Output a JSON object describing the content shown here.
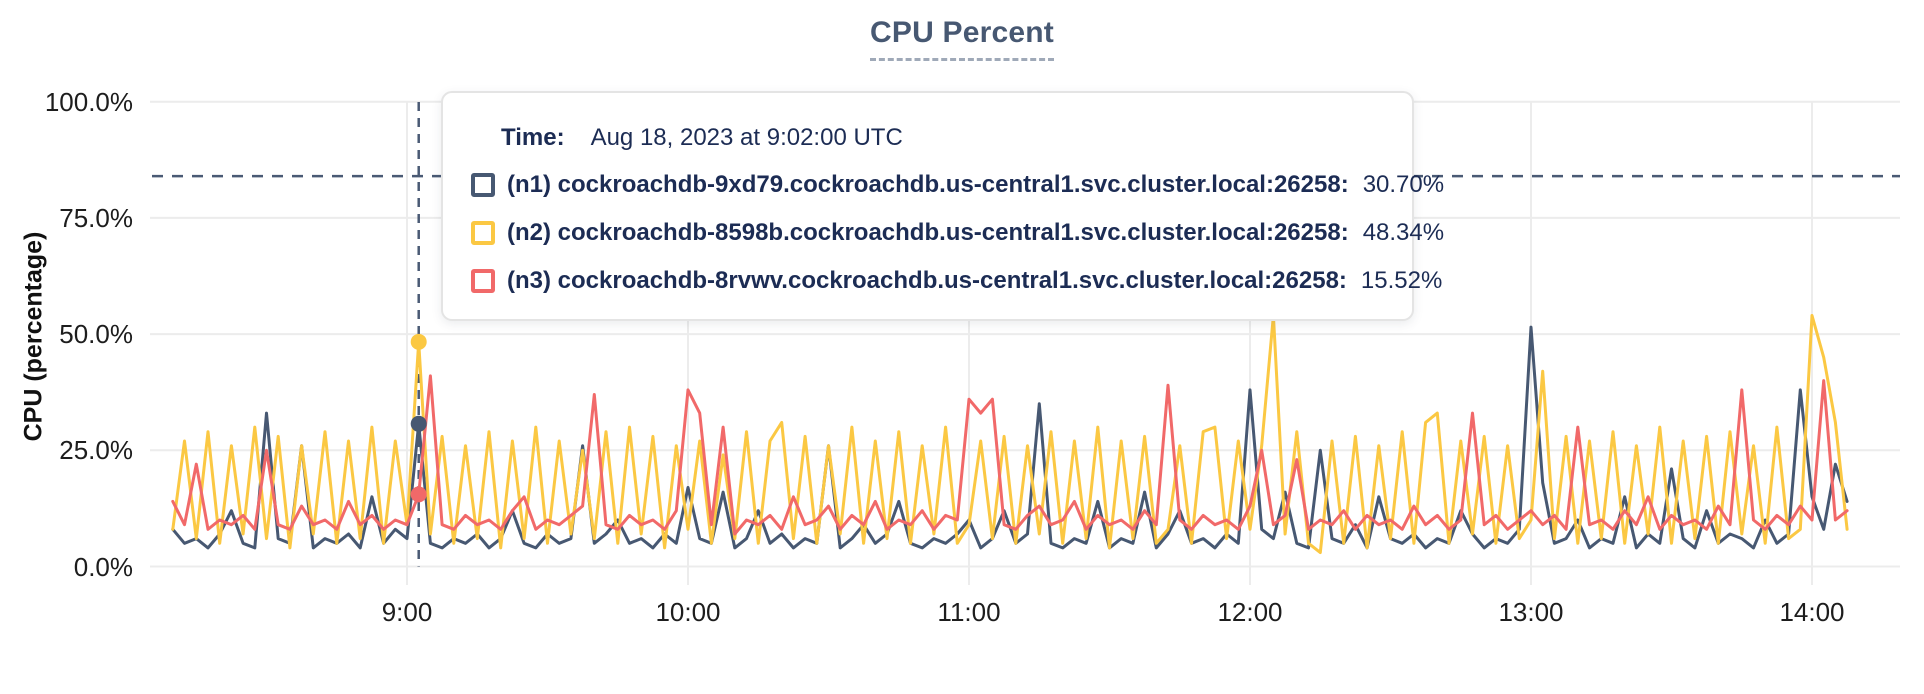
{
  "title": "CPU Percent",
  "y_axis": {
    "label": "CPU (percentage)",
    "ticks": [
      {
        "label": "0.0%",
        "value": 0
      },
      {
        "label": "25.0%",
        "value": 25
      },
      {
        "label": "50.0%",
        "value": 50
      },
      {
        "label": "75.0%",
        "value": 75
      },
      {
        "label": "100.0%",
        "value": 100
      }
    ]
  },
  "x_axis": {
    "ticks": [
      {
        "label": "9:00",
        "minutes": 0
      },
      {
        "label": "10:00",
        "minutes": 60
      },
      {
        "label": "11:00",
        "minutes": 120
      },
      {
        "label": "12:00",
        "minutes": 180
      },
      {
        "label": "13:00",
        "minutes": 240
      },
      {
        "label": "14:00",
        "minutes": 300
      }
    ]
  },
  "tooltip": {
    "time_label": "Time:",
    "time_value": "Aug 18, 2023 at 9:02:00 UTC",
    "rows": [
      {
        "label": "(n1) cockroachdb-9xd79.cockroachdb.us-central1.svc.cluster.local:26258:",
        "value": "30.70%",
        "color": "#475872"
      },
      {
        "label": "(n2) cockroachdb-8598b.cockroachdb.us-central1.svc.cluster.local:26258:",
        "value": "48.34%",
        "color": "#FBC843"
      },
      {
        "label": "(n3) cockroachdb-8rvwv.cockroachdb.us-central1.svc.cluster.local:26258:",
        "value": "15.52%",
        "color": "#F16969"
      }
    ]
  },
  "colors": {
    "grid": "#ececec",
    "dashed": "#4a5a74",
    "tick_text": "#1d1d1d",
    "tooltip_text": "#1c2c54",
    "title": "#475872"
  },
  "chart_data": {
    "type": "line",
    "title": "CPU Percent",
    "xlabel": "",
    "ylabel": "CPU (percentage)",
    "ylim": [
      0,
      100
    ],
    "xlim_minutes": [
      -55,
      319
    ],
    "grid": true,
    "legend_position": "tooltip-overlay",
    "x_start_minutes": -50,
    "x_step_minutes": 2.5,
    "threshold_value": 84,
    "hover": {
      "time_text": "Aug 18, 2023 at 9:02:00 UTC",
      "minutes": 2.5,
      "points": [
        {
          "series": "n1",
          "value": 30.7
        },
        {
          "series": "n2",
          "value": 48.34
        },
        {
          "series": "n3",
          "value": 15.52
        }
      ]
    },
    "series": [
      {
        "id": "n1",
        "name": "(n1) cockroachdb-9xd79.cockroachdb.us-central1.svc.cluster.local:26258",
        "color": "#475872",
        "values": [
          8,
          5,
          6,
          4,
          7,
          12,
          5,
          4,
          33,
          6,
          5,
          26,
          4,
          6,
          5,
          7,
          4,
          15,
          5,
          8,
          6,
          30.7,
          5,
          4,
          6,
          5,
          7,
          4,
          6,
          12,
          5,
          4,
          7,
          5,
          6,
          26,
          5,
          7,
          10,
          5,
          6,
          4,
          7,
          5,
          17,
          6,
          5,
          16,
          4,
          6,
          12,
          5,
          7,
          4,
          6,
          5,
          26,
          4,
          6,
          9,
          5,
          7,
          14,
          5,
          4,
          6,
          5,
          7,
          10,
          4,
          6,
          12,
          5,
          7,
          35,
          5,
          4,
          6,
          5,
          14,
          4,
          6,
          5,
          16,
          4,
          7,
          12,
          5,
          6,
          4,
          7,
          5,
          38,
          8,
          6,
          16,
          5,
          4,
          25,
          6,
          5,
          9,
          4,
          15,
          6,
          5,
          7,
          4,
          6,
          5,
          12,
          7,
          4,
          6,
          5,
          8,
          51.5,
          18,
          5,
          6,
          10,
          4,
          6,
          5,
          15,
          4,
          7,
          5,
          21,
          6,
          4,
          12,
          5,
          7,
          6,
          4,
          10,
          5,
          7,
          38,
          15,
          8,
          22,
          14
        ]
      },
      {
        "id": "n2",
        "name": "(n2) cockroachdb-8598b.cockroachdb.us-central1.svc.cluster.local:26258",
        "color": "#FBC843",
        "values": [
          8,
          27,
          6,
          29,
          5,
          26,
          7,
          30,
          6,
          28,
          4,
          26,
          7,
          29,
          5,
          27,
          6,
          30,
          5,
          27,
          9,
          48.3,
          7,
          28,
          5,
          26,
          6,
          29,
          4,
          27,
          6,
          30,
          5,
          27,
          7,
          25,
          6,
          29,
          5,
          30,
          7,
          28,
          4,
          26,
          8,
          27,
          5,
          24,
          6,
          29,
          5,
          27,
          31,
          6,
          28,
          5,
          26,
          7,
          30,
          5,
          27,
          6,
          29,
          5,
          26,
          7,
          30,
          5,
          9,
          27,
          6,
          28,
          5,
          26,
          7,
          29,
          5,
          27,
          6,
          30,
          4,
          27,
          6,
          28,
          5,
          8,
          26,
          5,
          29,
          30,
          6,
          27,
          8,
          26,
          54,
          7,
          29,
          5,
          3,
          27,
          5,
          28,
          4,
          26,
          6,
          29,
          5,
          31,
          33,
          5,
          27,
          7,
          28,
          5,
          26,
          6,
          10,
          42,
          6,
          28,
          5,
          27,
          6,
          29,
          5,
          26,
          7,
          30,
          5,
          27,
          6,
          28,
          5,
          29,
          7,
          26,
          5,
          30,
          6,
          8,
          54,
          45,
          31,
          8
        ]
      },
      {
        "id": "n3",
        "name": "(n3) cockroachdb-8rvwv.cockroachdb.us-central1.svc.cluster.local:26258",
        "color": "#F16969",
        "values": [
          14,
          9,
          22,
          8,
          10,
          9,
          11,
          8,
          25,
          9,
          8,
          13,
          9,
          10,
          8,
          14,
          9,
          11,
          8,
          10,
          9,
          15.5,
          41,
          9,
          8,
          11,
          9,
          10,
          8,
          12,
          15,
          8,
          10,
          9,
          11,
          13,
          37,
          9,
          8,
          11,
          9,
          10,
          8,
          12,
          38,
          33,
          9,
          30,
          7,
          10,
          9,
          11,
          8,
          15,
          9,
          10,
          13,
          8,
          11,
          9,
          14,
          8,
          10,
          9,
          12,
          8,
          11,
          10,
          36,
          33,
          36,
          9,
          8,
          11,
          13,
          9,
          10,
          14,
          8,
          11,
          9,
          10,
          8,
          12,
          9,
          39,
          10,
          8,
          11,
          9,
          10,
          8,
          13,
          25,
          9,
          11,
          23,
          8,
          10,
          9,
          12,
          8,
          11,
          9,
          10,
          8,
          13,
          9,
          11,
          8,
          10,
          33,
          9,
          11,
          8,
          10,
          12,
          9,
          11,
          8,
          30,
          9,
          10,
          8,
          12,
          9,
          15,
          8,
          11,
          9,
          10,
          8,
          13,
          9,
          38,
          10,
          8,
          11,
          9,
          13,
          10,
          40,
          10,
          12
        ]
      }
    ]
  }
}
